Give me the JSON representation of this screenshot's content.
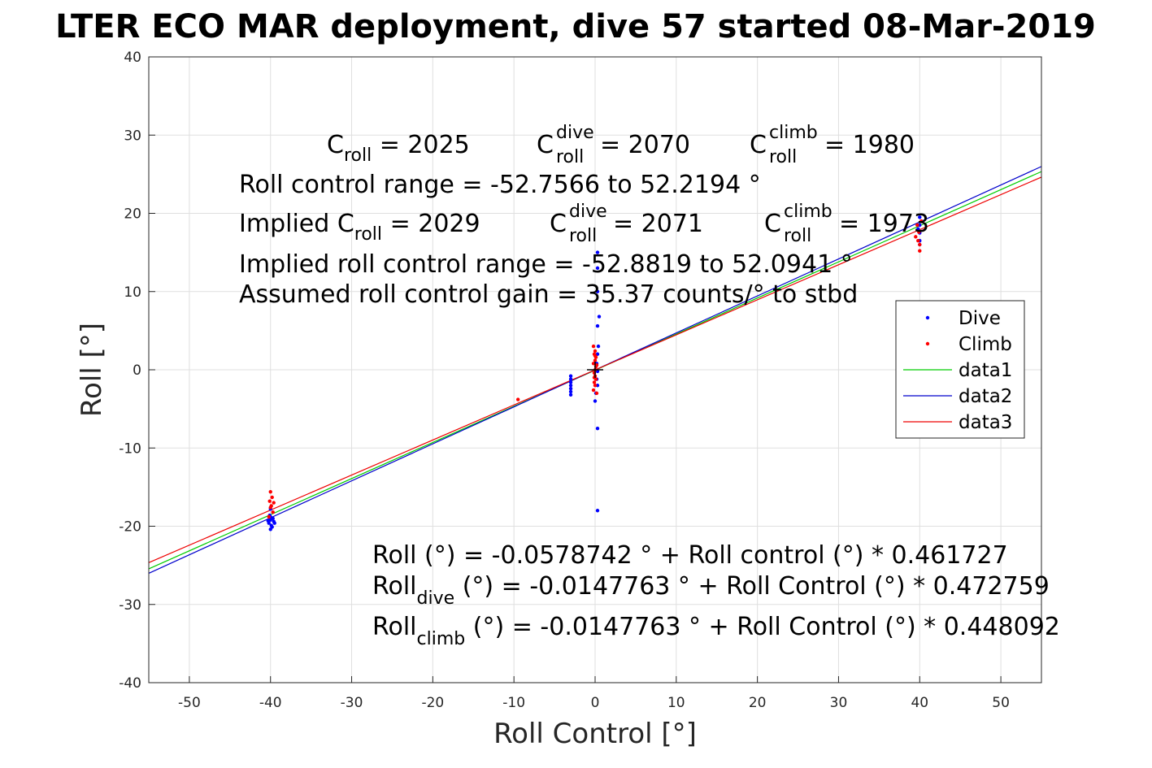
{
  "chart_data": {
    "type": "scatter",
    "title": "LTER ECO MAR deployment, dive 57 started 08-Mar-2019",
    "xlabel": "Roll Control [°]",
    "ylabel": "Roll [°]",
    "xlim": [
      -55,
      55
    ],
    "ylim": [
      -40,
      40
    ],
    "xticks": [
      -50,
      -40,
      -30,
      -20,
      -10,
      0,
      10,
      20,
      30,
      40,
      50
    ],
    "yticks": [
      -40,
      -30,
      -20,
      -10,
      0,
      10,
      20,
      30,
      40
    ],
    "grid": true,
    "legend_position": "right",
    "series": [
      {
        "name": "Dive",
        "kind": "points",
        "color": "#0000ff",
        "points": [
          [
            -40,
            -18.8
          ],
          [
            -40,
            -19.2
          ],
          [
            -40.2,
            -19.6
          ],
          [
            -39.8,
            -20.1
          ],
          [
            -40,
            -20.4
          ],
          [
            -39.6,
            -19.4
          ],
          [
            -40.1,
            -18.6
          ],
          [
            -39.9,
            -19.9
          ],
          [
            -39.7,
            -19.0
          ],
          [
            -40.3,
            -19.3
          ],
          [
            -39.5,
            -19.6
          ],
          [
            -40,
            -17.8
          ],
          [
            -3,
            -0.8
          ],
          [
            -3,
            -1.2
          ],
          [
            -3,
            -1.6
          ],
          [
            -3,
            -2.0
          ],
          [
            -3,
            -2.4
          ],
          [
            -3,
            -2.8
          ],
          [
            -3,
            -3.2
          ],
          [
            0.3,
            15
          ],
          [
            0.3,
            13
          ],
          [
            0.3,
            10
          ],
          [
            0.5,
            6.8
          ],
          [
            0.3,
            5.6
          ],
          [
            0.4,
            3.0
          ],
          [
            0.3,
            2.0
          ],
          [
            0.2,
            0.8
          ],
          [
            0.3,
            -0.2
          ],
          [
            0.2,
            -1.2
          ],
          [
            0.3,
            -2.0
          ],
          [
            0.1,
            -3.0
          ],
          [
            0.0,
            -4.0
          ],
          [
            0.3,
            -7.5
          ],
          [
            0.3,
            -18.0
          ],
          [
            40,
            19.5
          ],
          [
            40,
            18.5
          ],
          [
            40,
            17.5
          ],
          [
            40,
            16.5
          ],
          [
            40,
            16.0
          ],
          [
            39.8,
            18.0
          ]
        ]
      },
      {
        "name": "Climb",
        "kind": "points",
        "color": "#ff0000",
        "points": [
          [
            -40,
            -15.6
          ],
          [
            -39.8,
            -16.3
          ],
          [
            -39.6,
            -17.0
          ],
          [
            -40,
            -17.6
          ],
          [
            -39.7,
            -18.2
          ],
          [
            -40.1,
            -16.8
          ],
          [
            -39.9,
            -17.4
          ],
          [
            -40.2,
            -18.8
          ],
          [
            -9.5,
            -3.8
          ],
          [
            -0.2,
            3.0
          ],
          [
            0.0,
            2.4
          ],
          [
            -0.1,
            2.0
          ],
          [
            0.1,
            1.6
          ],
          [
            0.0,
            1.2
          ],
          [
            -0.2,
            0.8
          ],
          [
            0.1,
            0.4
          ],
          [
            0.0,
            0.0
          ],
          [
            -0.1,
            -0.4
          ],
          [
            0.0,
            -0.8
          ],
          [
            0.1,
            -1.2
          ],
          [
            -0.1,
            -1.6
          ],
          [
            0.0,
            -2.0
          ],
          [
            -0.2,
            -2.6
          ],
          [
            0.2,
            -3.0
          ],
          [
            0.0,
            1.8
          ],
          [
            -0.1,
            -1.0
          ],
          [
            0.2,
            0.6
          ],
          [
            39.5,
            17.0
          ],
          [
            39.8,
            16.5
          ],
          [
            40,
            16.0
          ],
          [
            40,
            15.2
          ],
          [
            39.7,
            18.5
          ],
          [
            40.2,
            19.0
          ],
          [
            39.9,
            17.6
          ]
        ]
      },
      {
        "name": "data1",
        "kind": "line",
        "color": "#00cc00",
        "x": [
          -55,
          55
        ],
        "intercept": -0.0578742,
        "slope": 0.461727
      },
      {
        "name": "data2",
        "kind": "line",
        "color": "#0000cc",
        "x": [
          -55,
          55
        ],
        "intercept": -0.0147763,
        "slope": 0.472759
      },
      {
        "name": "data3",
        "kind": "line",
        "color": "#ee0000",
        "x": [
          -55,
          55
        ],
        "intercept": -0.0147763,
        "slope": 0.448092
      }
    ],
    "annotations": {
      "c_roll": {
        "main": "C",
        "sub": "roll",
        "value": " = 2025"
      },
      "c_roll_dive": {
        "main": "C",
        "sup": "dive",
        "sub": "roll",
        "value": " = 2070"
      },
      "c_roll_climb": {
        "main": "C",
        "sup": "climb",
        "sub": "roll",
        "value": " = 1980"
      },
      "roll_range": "Roll control range = -52.7566 to 52.2194 °",
      "implied_c_roll": {
        "main": "Implied C",
        "sub": "roll",
        "value": " = 2029"
      },
      "implied_c_roll_dive": {
        "main": "C",
        "sup": "dive",
        "sub": "roll",
        "value": " = 2071"
      },
      "implied_c_roll_climb": {
        "main": "C",
        "sup": "climb",
        "sub": "roll",
        "value": " = 1973"
      },
      "implied_range": "Implied roll control range = -52.8819 to 52.0941 °",
      "gain": "Assumed roll control gain = 35.37 counts/° to stbd",
      "fit_all": "Roll (°) = -0.0578742 ° + Roll control (°) * 0.461727",
      "fit_dive": {
        "main": "Roll",
        "sub": "dive",
        "value": " (°) = -0.0147763 ° + Roll Control (°) * 0.472759"
      },
      "fit_climb": {
        "main": "Roll",
        "sub": "climb",
        "value": " (°) = -0.0147763 ° + Roll Control (°) * 0.448092"
      }
    }
  }
}
